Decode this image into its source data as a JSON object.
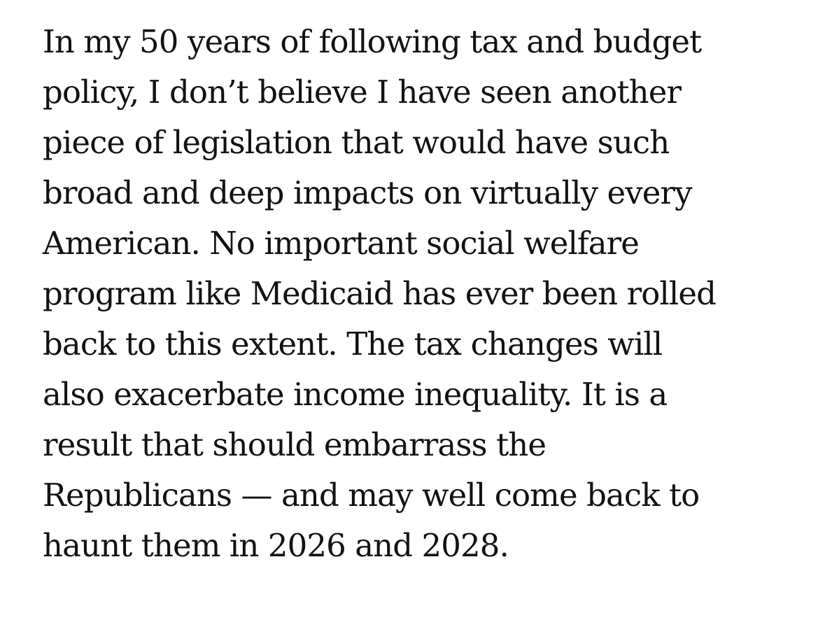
{
  "article": {
    "lines": [
      "In my 50 years of following tax and budget",
      "policy, I don’t believe I have seen another",
      "piece of legislation that would have such",
      "broad and deep impacts on virtually every",
      "American. No important social welfare",
      "program like Medicaid has ever been rolled",
      "back to this extent. The tax changes will",
      "also exacerbate income inequality. It is a",
      "result that should embarrass the",
      "Republicans — and may well come back to",
      "haunt them in 2026 and 2028."
    ]
  }
}
